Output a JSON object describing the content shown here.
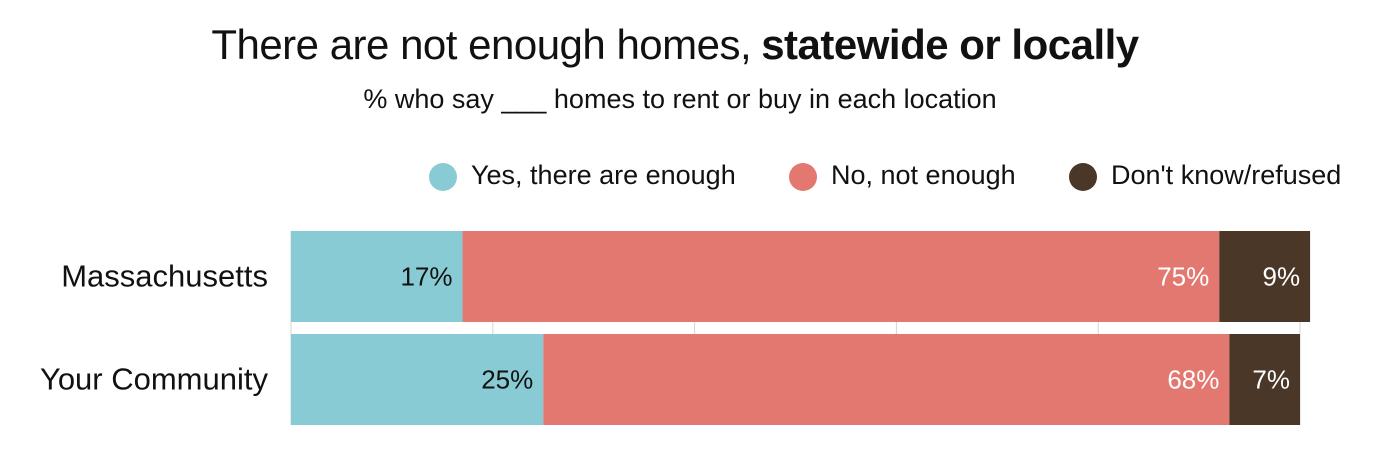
{
  "chart_data": {
    "type": "stacked-bar-horizontal",
    "title": "There are not enough homes,",
    "title_emphasis": "statewide or locally",
    "subtitle": "% who say ___ homes to rent or buy in each location",
    "categories": [
      "Massachusetts",
      "Your Community"
    ],
    "series": [
      {
        "name": "Yes, there are enough",
        "color": "#89cbd5",
        "label_color": "#111111",
        "values": [
          17,
          25
        ],
        "value_labels": [
          "17%",
          "25%"
        ]
      },
      {
        "name": "No, not enough",
        "color": "#e27870",
        "label_color": "#ffffff",
        "values": [
          75,
          68
        ],
        "value_labels": [
          "75%",
          "68%"
        ]
      },
      {
        "name": "Don't know/refused",
        "color": "#4a3728",
        "label_color": "#ffffff",
        "values": [
          9,
          7
        ],
        "value_labels": [
          "9%",
          "7%"
        ]
      }
    ],
    "xlim": [
      0,
      100
    ],
    "xticks": [
      0,
      20,
      40,
      60,
      80,
      100
    ],
    "grid": true
  }
}
